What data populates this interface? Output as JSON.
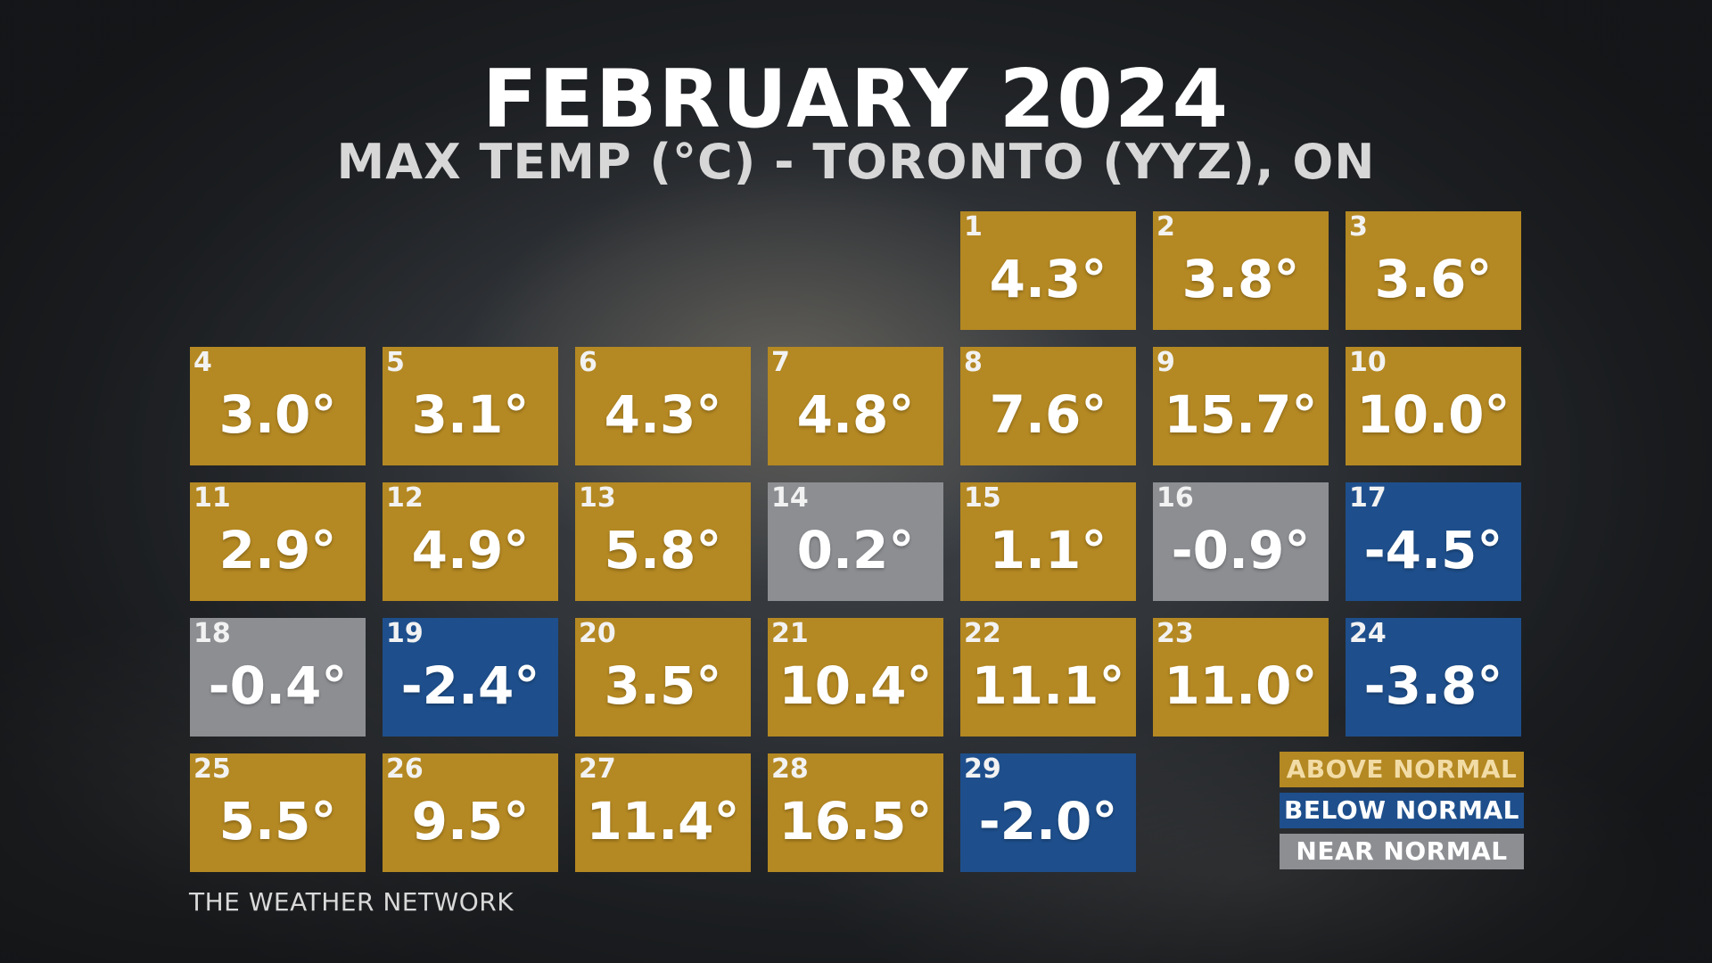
{
  "header": {
    "title": "FEBRUARY 2024",
    "subtitle": "MAX TEMP (°C) - TORONTO (YYZ), ON"
  },
  "colors": {
    "above": "#b48822",
    "below": "#1e4f8c",
    "near": "#8c8e92",
    "legend_above_text": "#f2dca6",
    "legend_below_text": "#ffffff",
    "legend_near_text": "#ffffff"
  },
  "legend": {
    "above_label": "ABOVE NORMAL",
    "below_label": "BELOW NORMAL",
    "near_label": "NEAR NORMAL"
  },
  "footer": {
    "brand": "THE WEATHER NETWORK"
  },
  "chart_data": {
    "type": "table",
    "title": "FEBRUARY 2024",
    "subtitle": "MAX TEMP (°C) - TORONTO (YYZ), ON",
    "first_weekday_index": 4,
    "unit_suffix": "°",
    "days": [
      {
        "day": 1,
        "value": 4.3,
        "category": "above"
      },
      {
        "day": 2,
        "value": 3.8,
        "category": "above"
      },
      {
        "day": 3,
        "value": 3.6,
        "category": "above"
      },
      {
        "day": 4,
        "value": 3.0,
        "category": "above"
      },
      {
        "day": 5,
        "value": 3.1,
        "category": "above"
      },
      {
        "day": 6,
        "value": 4.3,
        "category": "above"
      },
      {
        "day": 7,
        "value": 4.8,
        "category": "above"
      },
      {
        "day": 8,
        "value": 7.6,
        "category": "above"
      },
      {
        "day": 9,
        "value": 15.7,
        "category": "above"
      },
      {
        "day": 10,
        "value": 10.0,
        "category": "above"
      },
      {
        "day": 11,
        "value": 2.9,
        "category": "above"
      },
      {
        "day": 12,
        "value": 4.9,
        "category": "above"
      },
      {
        "day": 13,
        "value": 5.8,
        "category": "above"
      },
      {
        "day": 14,
        "value": 0.2,
        "category": "near"
      },
      {
        "day": 15,
        "value": 1.1,
        "category": "above"
      },
      {
        "day": 16,
        "value": -0.9,
        "category": "near"
      },
      {
        "day": 17,
        "value": -4.5,
        "category": "below"
      },
      {
        "day": 18,
        "value": -0.4,
        "category": "near"
      },
      {
        "day": 19,
        "value": -2.4,
        "category": "below"
      },
      {
        "day": 20,
        "value": 3.5,
        "category": "above"
      },
      {
        "day": 21,
        "value": 10.4,
        "category": "above"
      },
      {
        "day": 22,
        "value": 11.1,
        "category": "above"
      },
      {
        "day": 23,
        "value": 11.0,
        "category": "above"
      },
      {
        "day": 24,
        "value": -3.8,
        "category": "below"
      },
      {
        "day": 25,
        "value": 5.5,
        "category": "above"
      },
      {
        "day": 26,
        "value": 9.5,
        "category": "above"
      },
      {
        "day": 27,
        "value": 11.4,
        "category": "above"
      },
      {
        "day": 28,
        "value": 16.5,
        "category": "above"
      },
      {
        "day": 29,
        "value": -2.0,
        "category": "below"
      }
    ],
    "legend": [
      {
        "key": "above",
        "label": "ABOVE NORMAL"
      },
      {
        "key": "below",
        "label": "BELOW NORMAL"
      },
      {
        "key": "near",
        "label": "NEAR NORMAL"
      }
    ]
  }
}
